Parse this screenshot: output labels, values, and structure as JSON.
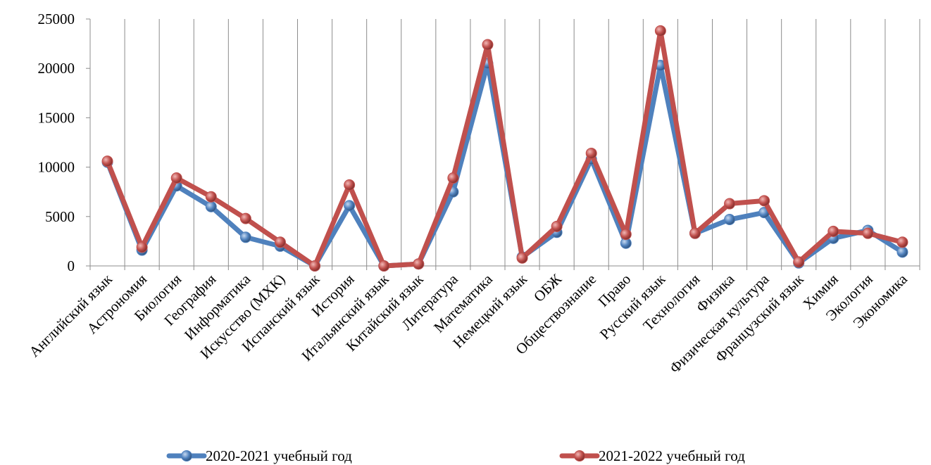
{
  "chart_data": {
    "type": "line",
    "categories": [
      "Английский язык",
      "Астрономия",
      "Биология",
      "География",
      "Информатика",
      "Искусство (МХК)",
      "Испанский язык",
      "История",
      "Итальянский язык",
      "Китайский язык",
      "Литература",
      "Математика",
      "Немецкий язык",
      "ОБЖ",
      "Обществознание",
      "Право",
      "Русский язык",
      "Технология",
      "Физика",
      "Физическая культура",
      "Французский язык",
      "Химия",
      "Экология",
      "Экономика"
    ],
    "series": [
      {
        "name": "2020-2021 учебный год",
        "color": "#4f81bd",
        "values": [
          10500,
          1600,
          8100,
          6000,
          2900,
          2000,
          0,
          6100,
          0,
          200,
          7500,
          20500,
          900,
          3400,
          10800,
          2300,
          20300,
          3300,
          4700,
          5400,
          300,
          2800,
          3600,
          1400
        ]
      },
      {
        "name": "2021-2022 учебный год",
        "color": "#c0504d",
        "values": [
          10600,
          1900,
          8900,
          7000,
          4800,
          2400,
          0,
          8200,
          0,
          200,
          8900,
          22400,
          800,
          4000,
          11400,
          3200,
          23800,
          3300,
          6300,
          6600,
          400,
          3500,
          3300,
          2400
        ]
      }
    ],
    "y_ticks": [
      "0",
      "5000",
      "10000",
      "15000",
      "20000",
      "25000"
    ],
    "ylim": [
      0,
      25000
    ],
    "grid": "vertical",
    "legend": "bottom"
  }
}
